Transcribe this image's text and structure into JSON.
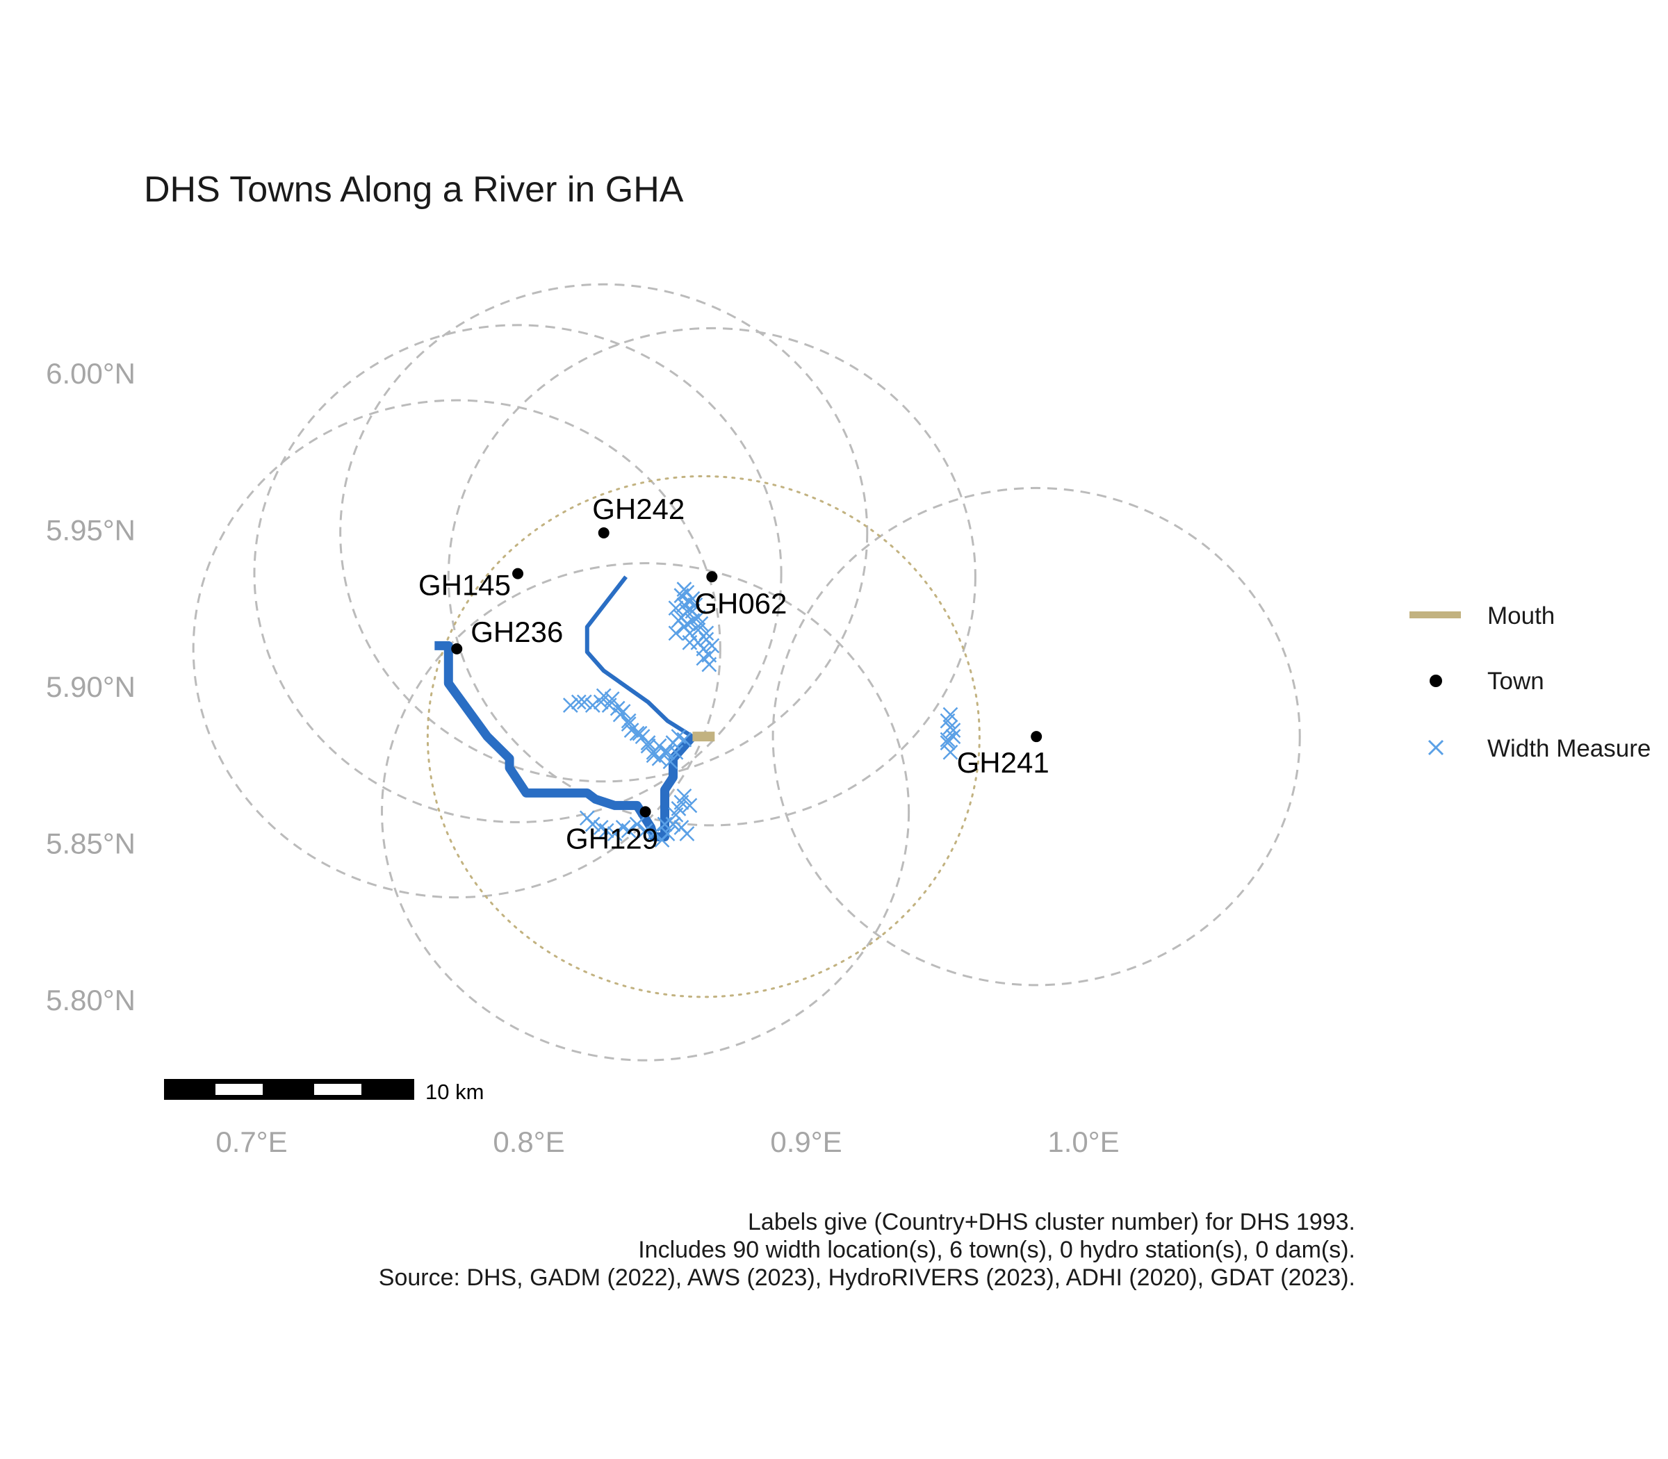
{
  "title": "DHS Towns Along a River in GHA",
  "axes": {
    "x_ticks": [
      {
        "value": 0.7,
        "label": "0.7°E"
      },
      {
        "value": 0.8,
        "label": "0.8°E"
      },
      {
        "value": 0.9,
        "label": "0.9°E"
      },
      {
        "value": 1.0,
        "label": "1.0°E"
      }
    ],
    "y_ticks": [
      {
        "value": 6.0,
        "label": "6.00°N"
      },
      {
        "value": 5.95,
        "label": "5.95°N"
      },
      {
        "value": 5.9,
        "label": "5.90°N"
      },
      {
        "value": 5.85,
        "label": "5.85°N"
      },
      {
        "value": 5.8,
        "label": "5.80°N"
      }
    ]
  },
  "legend": {
    "items": [
      {
        "label": "Mouth",
        "symbol": "line",
        "color": "#c2b280"
      },
      {
        "label": "Town",
        "symbol": "dot",
        "color": "#000000"
      },
      {
        "label": "Width Measure",
        "symbol": "cross",
        "color": "#5aa0e6"
      }
    ]
  },
  "scale_bar": {
    "label": "10 km"
  },
  "caption": [
    "Labels give (Country+DHS cluster number) for DHS 1993.",
    "Includes 90 width location(s), 6 town(s), 0 hydro station(s), 0 dam(s).",
    "Source: DHS, GADM (2022), AWS (2023), HydroRIVERS (2023), ADHI (2020), GDAT (2023)."
  ],
  "colors": {
    "river": "#2a6ec4",
    "width_measure": "#5aa0e6",
    "mouth": "#c2b280",
    "buffer_circle": "#bbbbbb",
    "mouth_circle": "#c2b280",
    "town": "#000000"
  },
  "chart_data": {
    "type": "map",
    "title": "DHS Towns Along a River in GHA",
    "xlim": [
      0.665,
      1.07
    ],
    "ylim": [
      5.775,
      6.05
    ],
    "towns": [
      {
        "id": "GH242",
        "lon": 0.827,
        "lat": 5.949
      },
      {
        "id": "GH145",
        "lon": 0.796,
        "lat": 5.936
      },
      {
        "id": "GH062",
        "lon": 0.866,
        "lat": 5.935
      },
      {
        "id": "GH236",
        "lon": 0.774,
        "lat": 5.912
      },
      {
        "id": "GH241",
        "lon": 0.983,
        "lat": 5.884
      },
      {
        "id": "GH129",
        "lon": 0.842,
        "lat": 5.86
      }
    ],
    "mouth": {
      "lon": [
        0.859,
        0.867
      ],
      "lat": 5.884
    },
    "town_buffer_radius_deg": 0.095,
    "mouth_buffer": {
      "lon": 0.863,
      "lat": 5.884,
      "radius_deg": 0.0995
    },
    "river_main": {
      "lon": [
        0.766,
        0.771,
        0.771,
        0.785,
        0.793,
        0.793,
        0.799,
        0.821,
        0.824,
        0.831,
        0.839,
        0.844,
        0.845,
        0.849,
        0.849,
        0.852,
        0.852,
        0.859
      ],
      "lat": [
        5.913,
        5.913,
        5.901,
        5.884,
        5.877,
        5.874,
        5.866,
        5.866,
        5.864,
        5.862,
        5.862,
        5.855,
        5.852,
        5.852,
        5.867,
        5.871,
        5.877,
        5.884
      ]
    },
    "river_tributary": {
      "lon": [
        0.835,
        0.821,
        0.821,
        0.827,
        0.843,
        0.85,
        0.859
      ],
      "lat": [
        5.935,
        5.919,
        5.911,
        5.905,
        5.895,
        5.889,
        5.884
      ]
    },
    "width_measures": {
      "lon": [
        0.855,
        0.856,
        0.858,
        0.857,
        0.854,
        0.856,
        0.859,
        0.858,
        0.861,
        0.861,
        0.863,
        0.863,
        0.865,
        0.853,
        0.856,
        0.857,
        0.859,
        0.859,
        0.861,
        0.862,
        0.864,
        0.866,
        0.865,
        0.853,
        0.855,
        0.858,
        0.857,
        0.855,
        0.86,
        0.864,
        0.815,
        0.818,
        0.82,
        0.823,
        0.826,
        0.829,
        0.832,
        0.834,
        0.836,
        0.837,
        0.84,
        0.843,
        0.845,
        0.847,
        0.85,
        0.852,
        0.854,
        0.856,
        0.827,
        0.83,
        0.833,
        0.836,
        0.839,
        0.841,
        0.843,
        0.845,
        0.847,
        0.849,
        0.851,
        0.853,
        0.821,
        0.823,
        0.826,
        0.828,
        0.831,
        0.834,
        0.836,
        0.839,
        0.842,
        0.845,
        0.848,
        0.85,
        0.852,
        0.853,
        0.854,
        0.855,
        0.856,
        0.858,
        0.849,
        0.852,
        0.855,
        0.857,
        0.951,
        0.952,
        0.953,
        0.951,
        0.952,
        0.953,
        0.952,
        0.951
      ],
      "lat": [
        5.929,
        5.926,
        5.927,
        5.924,
        5.921,
        5.919,
        5.921,
        5.917,
        5.918,
        5.914,
        5.912,
        5.909,
        5.91,
        5.925,
        5.931,
        5.93,
        5.928,
        5.924,
        5.922,
        5.92,
        5.917,
        5.913,
        5.907,
        5.917,
        5.929,
        5.914,
        5.92,
        5.922,
        5.926,
        5.915,
        5.894,
        5.895,
        5.895,
        5.894,
        5.895,
        5.894,
        5.893,
        5.892,
        5.889,
        5.886,
        5.885,
        5.882,
        5.879,
        5.881,
        5.879,
        5.882,
        5.884,
        5.883,
        5.897,
        5.896,
        5.891,
        5.888,
        5.885,
        5.884,
        5.881,
        5.878,
        5.877,
        5.879,
        5.876,
        5.879,
        5.858,
        5.856,
        5.855,
        5.854,
        5.853,
        5.855,
        5.854,
        5.856,
        5.854,
        5.853,
        5.851,
        5.853,
        5.856,
        5.859,
        5.861,
        5.863,
        5.865,
        5.862,
        5.856,
        5.856,
        5.855,
        5.853,
        5.889,
        5.887,
        5.884,
        5.882,
        5.879,
        5.886,
        5.891,
        5.883
      ]
    },
    "scale_bar_km": 10
  }
}
